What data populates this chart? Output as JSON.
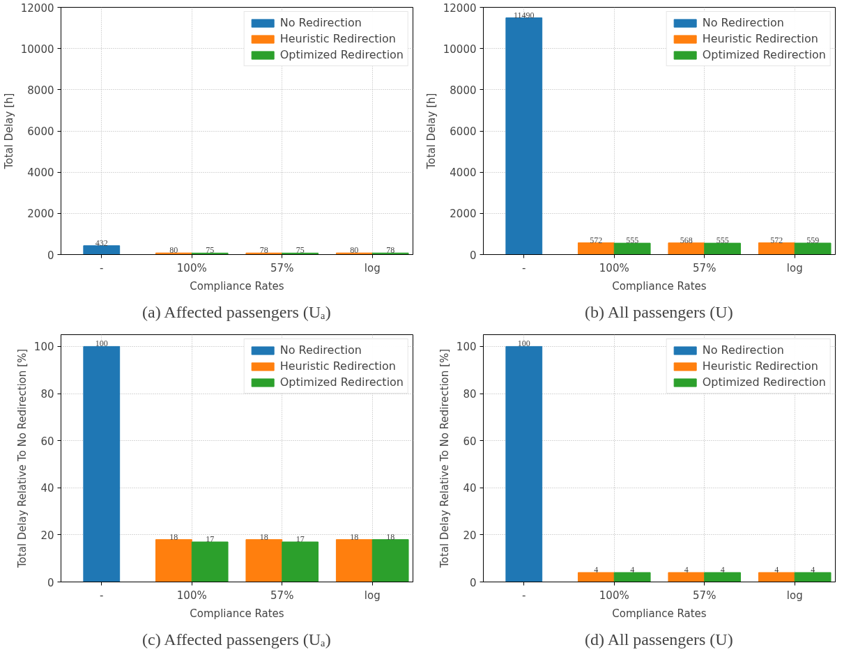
{
  "chart_data": [
    {
      "type": "bar",
      "categories": [
        "-",
        "100%",
        "57%",
        "log"
      ],
      "xlabel": "Compliance Rates",
      "ylabel": "Total Delay [h]",
      "series": [
        {
          "name": "No Redirection",
          "color": "#1f77b4",
          "values": [
            432,
            null,
            null,
            null
          ]
        },
        {
          "name": "Heuristic Redirection",
          "color": "#ff7f0e",
          "values": [
            null,
            80,
            78,
            80
          ]
        },
        {
          "name": "Optimized Redirection",
          "color": "#2ca02c",
          "values": [
            null,
            75,
            75,
            78
          ]
        }
      ],
      "ylim": [
        0,
        12000
      ],
      "yticks": [
        0,
        2000,
        4000,
        6000,
        8000,
        10000,
        12000
      ],
      "grid": true,
      "legend": "top right",
      "data_labels": true,
      "annotations": [
        "(a) Affected passengers (Uₐ)"
      ]
    },
    {
      "type": "bar",
      "categories": [
        "-",
        "100%",
        "57%",
        "log"
      ],
      "xlabel": "Compliance Rates",
      "ylabel": "Total Delay [h]",
      "series": [
        {
          "name": "No Redirection",
          "color": "#1f77b4",
          "values": [
            11490,
            null,
            null,
            null
          ]
        },
        {
          "name": "Heuristic Redirection",
          "color": "#ff7f0e",
          "values": [
            null,
            572,
            568,
            572
          ]
        },
        {
          "name": "Optimized Redirection",
          "color": "#2ca02c",
          "values": [
            null,
            555,
            555,
            559
          ]
        }
      ],
      "ylim": [
        0,
        12000
      ],
      "yticks": [
        0,
        2000,
        4000,
        6000,
        8000,
        10000,
        12000
      ],
      "grid": true,
      "legend": "top right",
      "data_labels": true,
      "annotations": [
        "(b) All passengers (U)"
      ]
    },
    {
      "type": "bar",
      "categories": [
        "-",
        "100%",
        "57%",
        "log"
      ],
      "xlabel": "Compliance Rates",
      "ylabel": "Total Delay Relative To No Redirection [%]",
      "series": [
        {
          "name": "No Redirection",
          "color": "#1f77b4",
          "values": [
            100,
            null,
            null,
            null
          ]
        },
        {
          "name": "Heuristic Redirection",
          "color": "#ff7f0e",
          "values": [
            null,
            18,
            18,
            18
          ]
        },
        {
          "name": "Optimized Redirection",
          "color": "#2ca02c",
          "values": [
            null,
            17,
            17,
            18
          ]
        }
      ],
      "ylim": [
        0,
        105
      ],
      "yticks": [
        0,
        20,
        40,
        60,
        80,
        100
      ],
      "grid": true,
      "legend": "top right",
      "data_labels": true,
      "annotations": [
        "(c) Affected passengers (Uₐ)"
      ]
    },
    {
      "type": "bar",
      "categories": [
        "-",
        "100%",
        "57%",
        "log"
      ],
      "xlabel": "Compliance Rates",
      "ylabel": "Total Delay Relative To No Redirection [%]",
      "series": [
        {
          "name": "No Redirection",
          "color": "#1f77b4",
          "values": [
            100,
            null,
            null,
            null
          ]
        },
        {
          "name": "Heuristic Redirection",
          "color": "#ff7f0e",
          "values": [
            null,
            4,
            4,
            4
          ]
        },
        {
          "name": "Optimized Redirection",
          "color": "#2ca02c",
          "values": [
            null,
            4,
            4,
            4
          ]
        }
      ],
      "ylim": [
        0,
        105
      ],
      "yticks": [
        0,
        20,
        40,
        60,
        80,
        100
      ],
      "grid": true,
      "legend": "top right",
      "data_labels": true,
      "annotations": [
        "(d) All passengers (U)"
      ]
    }
  ]
}
